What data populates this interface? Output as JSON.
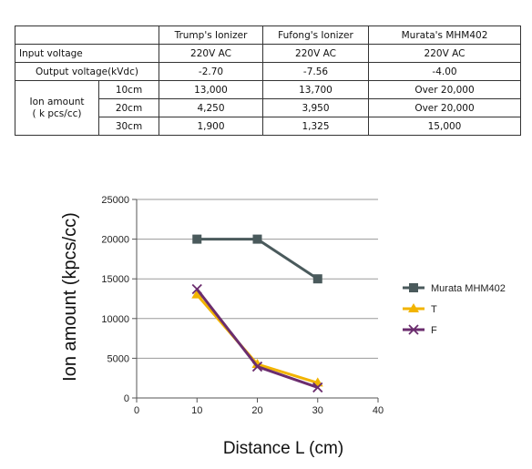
{
  "table": {
    "headers": [
      "",
      "Trump's Ionizer",
      "Fufong's Ionizer",
      "Murata's MHM402"
    ],
    "rows": {
      "input_voltage": {
        "label": "Input voltage",
        "values": [
          "220V AC",
          "220V AC",
          "220V AC"
        ]
      },
      "output_voltage": {
        "label": "Output voltage(kVdc)",
        "values": [
          "-2.70",
          "-7.56",
          "-4.00"
        ]
      },
      "ion_amount": {
        "label_line1": "Ion amount",
        "label_line2": "( k pcs/cc)",
        "distances": [
          {
            "distance": "10cm",
            "values": [
              "13,000",
              "13,700",
              "Over 20,000"
            ]
          },
          {
            "distance": "20cm",
            "values": [
              "4,250",
              "3,950",
              "Over 20,000"
            ]
          },
          {
            "distance": "30cm",
            "values": [
              "1,900",
              "1,325",
              "15,000"
            ]
          }
        ]
      }
    }
  },
  "chart_data": {
    "type": "line",
    "title": "",
    "xlabel": "Distance L (cm)",
    "ylabel": "Ion amount (kpcs/cc)",
    "xlim": [
      0,
      40
    ],
    "ylim": [
      0,
      25000
    ],
    "xticks": [
      0,
      10,
      20,
      30,
      40
    ],
    "yticks": [
      0,
      5000,
      10000,
      15000,
      20000,
      25000
    ],
    "grid": "horizontal",
    "legend": "right",
    "x": [
      10,
      20,
      30
    ],
    "series": [
      {
        "name": "Murata MHM402",
        "values": [
          20000,
          20000,
          15000
        ],
        "color": "#4a5a5c",
        "marker": "square"
      },
      {
        "name": "T",
        "values": [
          13000,
          4250,
          1900
        ],
        "color": "#f2b400",
        "marker": "triangle"
      },
      {
        "name": "F",
        "values": [
          13700,
          3950,
          1325
        ],
        "color": "#6b2d6e",
        "marker": "x"
      }
    ]
  }
}
